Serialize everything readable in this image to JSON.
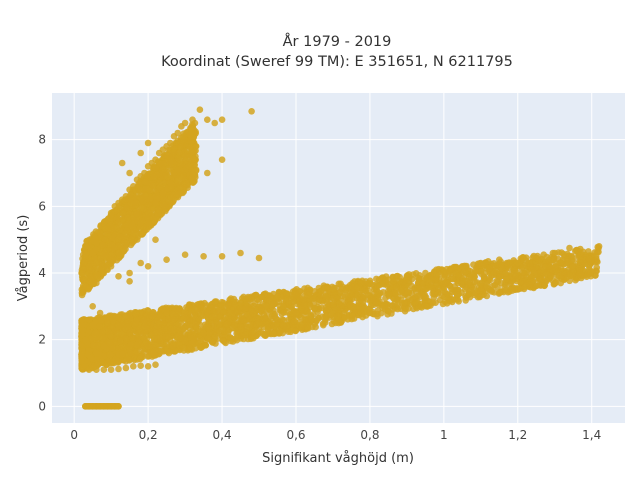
{
  "chart_data": {
    "type": "scatter",
    "title_line1": "År 1979 - 2019",
    "title_line2": "Koordinat (Sweref 99 TM): E 351651, N 6211795",
    "xlabel": "Signifikant våghöjd (m)",
    "ylabel": "Vågperiod (s)",
    "xlim": [
      -0.06,
      1.49
    ],
    "ylim": [
      -0.5,
      9.4
    ],
    "xticks": [
      0,
      0.2,
      0.4,
      0.6,
      0.8,
      1,
      1.2,
      1.4
    ],
    "xtick_labels": [
      "0",
      "0,2",
      "0,4",
      "0,6",
      "0,8",
      "1",
      "1,2",
      "1,4"
    ],
    "yticks": [
      0,
      2,
      4,
      6,
      8
    ],
    "ytick_labels": [
      "0",
      "2",
      "4",
      "6",
      "8"
    ],
    "grid": true,
    "marker_color": "#D4A520",
    "background_color": "#E5ECF6",
    "clusters": [
      {
        "desc": "swell band",
        "x_range": [
          0.02,
          0.33
        ],
        "y_start": [
          3.3,
          4.8
        ],
        "y_end": [
          6.8,
          8.6
        ]
      },
      {
        "desc": "wind-sea band",
        "x_range": [
          0.02,
          1.42
        ],
        "y_start": [
          1.1,
          2.6
        ],
        "y_end": [
          3.9,
          4.8
        ]
      },
      {
        "desc": "zero-period line",
        "x_range": [
          0.03,
          0.12
        ],
        "y": 0
      }
    ],
    "points": [
      [
        0.03,
        0
      ],
      [
        0.04,
        0
      ],
      [
        0.05,
        0
      ],
      [
        0.06,
        0
      ],
      [
        0.07,
        0
      ],
      [
        0.08,
        0
      ],
      [
        0.09,
        0
      ],
      [
        0.1,
        0
      ],
      [
        0.11,
        0
      ],
      [
        0.12,
        0
      ],
      [
        0.02,
        1.55
      ],
      [
        0.03,
        1.2
      ],
      [
        0.04,
        1.1
      ],
      [
        0.05,
        1.15
      ],
      [
        0.06,
        1.1
      ],
      [
        0.08,
        1.1
      ],
      [
        0.1,
        1.1
      ],
      [
        0.12,
        1.12
      ],
      [
        0.14,
        1.15
      ],
      [
        0.16,
        1.2
      ],
      [
        0.18,
        1.22
      ],
      [
        0.2,
        1.2
      ],
      [
        0.22,
        1.25
      ],
      [
        0.03,
        2.0
      ],
      [
        0.04,
        2.6
      ],
      [
        0.05,
        3.0
      ],
      [
        0.06,
        2.2
      ],
      [
        0.07,
        2.8
      ],
      [
        0.08,
        1.8
      ],
      [
        0.09,
        2.5
      ],
      [
        0.1,
        2.1
      ],
      [
        0.12,
        2.4
      ],
      [
        0.14,
        2.7
      ],
      [
        0.15,
        2.2
      ],
      [
        0.17,
        2.6
      ],
      [
        0.19,
        2.4
      ],
      [
        0.21,
        2.7
      ],
      [
        0.23,
        2.5
      ],
      [
        0.25,
        2.8
      ],
      [
        0.27,
        2.6
      ],
      [
        0.3,
        2.8
      ],
      [
        0.32,
        2.6
      ],
      [
        0.35,
        2.9
      ],
      [
        0.38,
        2.7
      ],
      [
        0.4,
        3.0
      ],
      [
        0.42,
        2.8
      ],
      [
        0.45,
        3.1
      ],
      [
        0.48,
        2.9
      ],
      [
        0.5,
        3.2
      ],
      [
        0.52,
        3.0
      ],
      [
        0.55,
        3.3
      ],
      [
        0.58,
        3.1
      ],
      [
        0.6,
        3.35
      ],
      [
        0.62,
        3.2
      ],
      [
        0.65,
        3.45
      ],
      [
        0.68,
        3.3
      ],
      [
        0.7,
        3.5
      ],
      [
        0.72,
        3.4
      ],
      [
        0.75,
        3.6
      ],
      [
        0.78,
        3.5
      ],
      [
        0.8,
        3.7
      ],
      [
        0.82,
        3.6
      ],
      [
        0.85,
        3.8
      ],
      [
        0.88,
        3.75
      ],
      [
        0.9,
        3.9
      ],
      [
        0.93,
        3.85
      ],
      [
        0.95,
        4.0
      ],
      [
        0.98,
        3.95
      ],
      [
        1.0,
        4.05
      ],
      [
        1.02,
        4.1
      ],
      [
        1.05,
        4.2
      ],
      [
        1.08,
        4.25
      ],
      [
        1.1,
        4.3
      ],
      [
        1.12,
        4.35
      ],
      [
        1.15,
        4.4
      ],
      [
        1.17,
        4.3
      ],
      [
        1.2,
        4.3
      ],
      [
        1.23,
        4.3
      ],
      [
        1.25,
        4.45
      ],
      [
        1.27,
        4.55
      ],
      [
        1.3,
        4.6
      ],
      [
        1.34,
        4.75
      ],
      [
        1.42,
        4.8
      ],
      [
        0.08,
        4.5
      ],
      [
        0.1,
        4.3
      ],
      [
        0.15,
        4.0
      ],
      [
        0.2,
        4.2
      ],
      [
        0.25,
        4.4
      ],
      [
        0.3,
        4.55
      ],
      [
        0.35,
        4.5
      ],
      [
        0.4,
        4.5
      ],
      [
        0.45,
        4.6
      ],
      [
        0.5,
        4.45
      ],
      [
        0.15,
        1.7
      ],
      [
        0.2,
        1.8
      ],
      [
        0.25,
        1.9
      ],
      [
        0.3,
        2.0
      ],
      [
        0.35,
        2.2
      ],
      [
        0.4,
        2.3
      ],
      [
        0.45,
        2.4
      ],
      [
        0.5,
        2.5
      ],
      [
        0.55,
        2.6
      ],
      [
        0.6,
        2.8
      ],
      [
        0.65,
        2.95
      ],
      [
        0.7,
        3.05
      ],
      [
        0.03,
        3.6
      ],
      [
        0.04,
        4.2
      ],
      [
        0.05,
        4.6
      ],
      [
        0.06,
        4.9
      ],
      [
        0.07,
        5.2
      ],
      [
        0.08,
        5.5
      ],
      [
        0.09,
        5.6
      ],
      [
        0.1,
        5.8
      ],
      [
        0.11,
        6.0
      ],
      [
        0.12,
        6.1
      ],
      [
        0.13,
        6.2
      ],
      [
        0.14,
        6.3
      ],
      [
        0.15,
        6.5
      ],
      [
        0.16,
        6.6
      ],
      [
        0.17,
        6.8
      ],
      [
        0.18,
        6.9
      ],
      [
        0.19,
        7.0
      ],
      [
        0.2,
        7.2
      ],
      [
        0.21,
        7.3
      ],
      [
        0.22,
        7.4
      ],
      [
        0.23,
        7.6
      ],
      [
        0.24,
        7.7
      ],
      [
        0.25,
        7.8
      ],
      [
        0.26,
        7.9
      ],
      [
        0.27,
        8.1
      ],
      [
        0.28,
        8.2
      ],
      [
        0.29,
        8.4
      ],
      [
        0.3,
        8.5
      ],
      [
        0.32,
        8.6
      ],
      [
        0.33,
        7.8
      ],
      [
        0.34,
        8.9
      ],
      [
        0.36,
        8.6
      ],
      [
        0.38,
        8.5
      ],
      [
        0.4,
        8.6
      ],
      [
        0.48,
        8.85
      ],
      [
        0.31,
        7.2
      ],
      [
        0.4,
        7.4
      ],
      [
        0.36,
        7.0
      ],
      [
        0.06,
        3.7
      ],
      [
        0.08,
        4.0
      ],
      [
        0.1,
        4.2
      ],
      [
        0.12,
        4.6
      ],
      [
        0.14,
        4.9
      ],
      [
        0.16,
        5.2
      ],
      [
        0.18,
        5.5
      ],
      [
        0.2,
        5.8
      ],
      [
        0.22,
        6.1
      ],
      [
        0.24,
        6.4
      ],
      [
        0.26,
        6.7
      ],
      [
        0.28,
        7.1
      ],
      [
        0.3,
        7.5
      ],
      [
        0.13,
        7.3
      ],
      [
        0.15,
        7.0
      ],
      [
        0.18,
        7.6
      ],
      [
        0.2,
        7.9
      ],
      [
        0.12,
        3.9
      ],
      [
        0.18,
        4.3
      ],
      [
        0.22,
        5.0
      ],
      [
        0.15,
        3.75
      ]
    ]
  }
}
